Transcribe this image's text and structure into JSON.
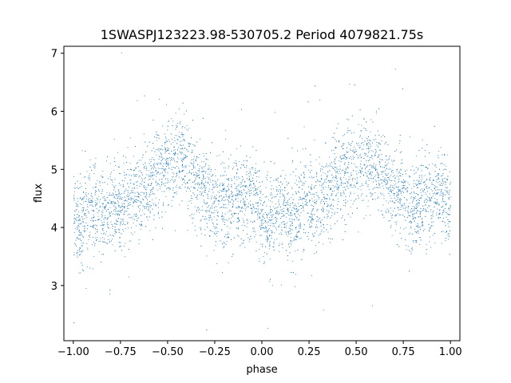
{
  "chart_data": {
    "type": "scatter",
    "title": "1SWASPJ123223.98-530705.2 Period 4079821.75s",
    "xlabel": "phase",
    "ylabel": "flux",
    "xlim": [
      -1.05,
      1.05
    ],
    "ylim": [
      2.05,
      7.12
    ],
    "xticks": [
      {
        "value": -1.0,
        "label": "−1.00"
      },
      {
        "value": -0.75,
        "label": "−0.75"
      },
      {
        "value": -0.5,
        "label": "−0.50"
      },
      {
        "value": -0.25,
        "label": "−0.25"
      },
      {
        "value": 0.0,
        "label": "0.00"
      },
      {
        "value": 0.25,
        "label": "0.25"
      },
      {
        "value": 0.5,
        "label": "0.50"
      },
      {
        "value": 0.75,
        "label": "0.75"
      },
      {
        "value": 1.0,
        "label": "1.00"
      }
    ],
    "yticks": [
      {
        "value": 3,
        "label": "3"
      },
      {
        "value": 4,
        "label": "4"
      },
      {
        "value": 5,
        "label": "5"
      },
      {
        "value": 6,
        "label": "6"
      },
      {
        "value": 7,
        "label": "7"
      }
    ],
    "grid": false,
    "marker_color": "#1f77b4",
    "series": [
      {
        "phase_profile": {
          "x": [
            0.0,
            0.03,
            0.08,
            0.15,
            0.22,
            0.32,
            0.4,
            0.47,
            0.55,
            0.62,
            0.68,
            0.75,
            0.82,
            0.9,
            0.95,
            1.0
          ],
          "y": [
            4.3,
            4.0,
            4.3,
            4.2,
            4.4,
            4.5,
            4.8,
            5.05,
            5.2,
            5.0,
            4.7,
            4.45,
            4.4,
            4.45,
            4.6,
            4.3
          ]
        },
        "scatter_sd": 0.38,
        "x_range": [
          -1.0,
          1.0
        ]
      }
    ]
  }
}
